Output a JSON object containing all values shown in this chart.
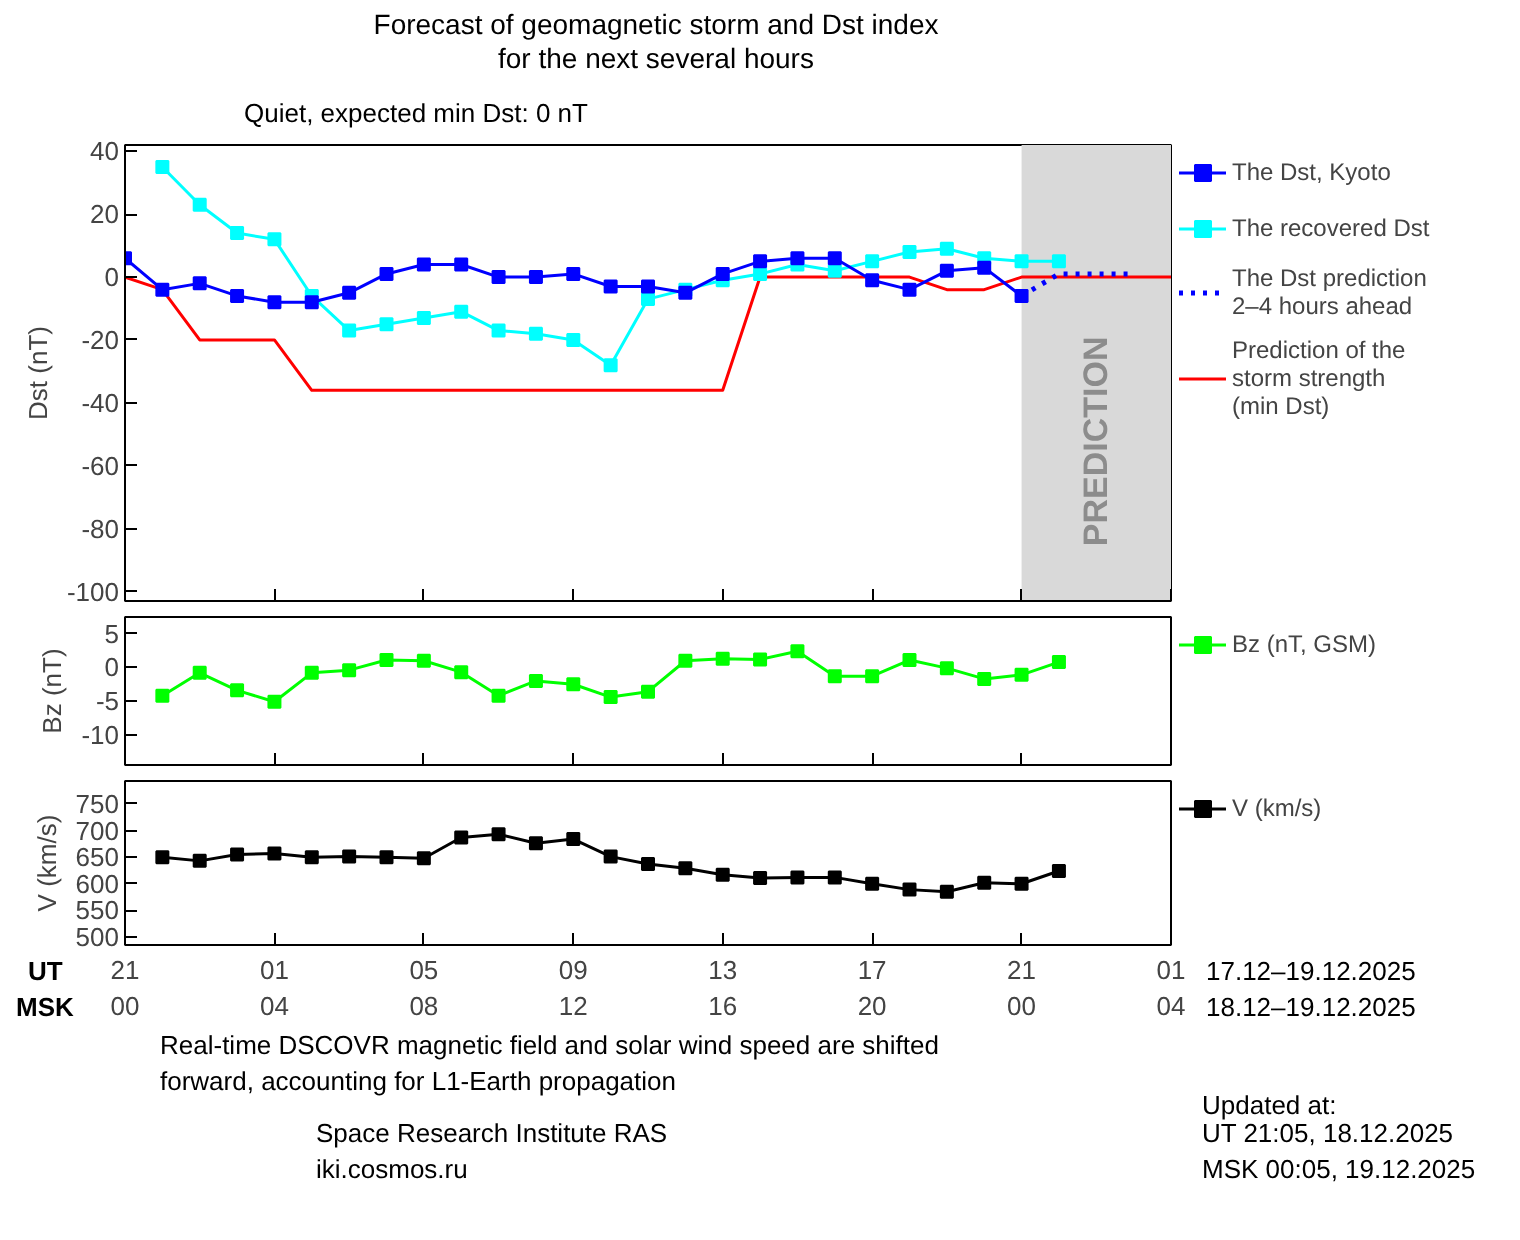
{
  "chart_data": [
    {
      "type": "line",
      "title": "Forecast of geomagnetic storm and Dst index\nfor the next several hours",
      "ylabel": "Dst (nT)",
      "annotations": [
        "Quiet, expected min Dst: 0 nT",
        "PREDICTION"
      ],
      "categories": [
        null,
        null,
        null,
        null,
        null,
        null,
        null,
        null,
        null,
        null,
        null,
        null,
        null,
        null,
        null,
        null,
        null,
        null,
        null,
        null,
        null,
        null,
        null,
        null,
        null,
        null,
        null,
        null,
        null
      ],
      "ylim": [
        -103,
        42
      ],
      "yticks": [
        -100,
        -80,
        -60,
        -40,
        -20,
        0,
        20,
        40
      ],
      "tick_labels": "y",
      "grid": false,
      "legend": "right",
      "series": [
        {
          "name": "The Dst, Kyoto",
          "color": "#0000ff",
          "marker": "square",
          "values": [
            6,
            -4,
            -2,
            -6,
            -8,
            -8,
            -5,
            1,
            4,
            4,
            0,
            0,
            1,
            -3,
            -3,
            -5,
            1,
            5,
            6,
            6,
            -1,
            -4,
            2,
            3,
            -6,
            null,
            null,
            null,
            null
          ]
        },
        {
          "name": "The recovered Dst",
          "color": "#00ffff",
          "marker": "square",
          "values": [
            null,
            35,
            23,
            14,
            12,
            -6,
            -17,
            -15,
            -13,
            -11,
            -17,
            -18,
            -20,
            -28,
            -7,
            -4,
            -1,
            1,
            4,
            2,
            5,
            8,
            9,
            6,
            5,
            5,
            null,
            null,
            null
          ]
        },
        {
          "name": "The Dst prediction\n2–4 hours ahead",
          "color": "#0000ff",
          "marker": "none",
          "line_style": "dotted",
          "values": [
            null,
            null,
            null,
            null,
            null,
            null,
            null,
            null,
            null,
            null,
            null,
            null,
            null,
            null,
            null,
            null,
            null,
            null,
            null,
            null,
            null,
            null,
            null,
            null,
            -6,
            1,
            1,
            1,
            null
          ]
        },
        {
          "name": "Prediction of the\nstorm strength\n(min Dst)",
          "color": "#ff0000",
          "marker": "none",
          "values": [
            0,
            -4,
            -20,
            -20,
            -20,
            -36,
            -36,
            -36,
            -36,
            -36,
            -36,
            -36,
            -36,
            -36,
            -36,
            -36,
            -36,
            0,
            0,
            0,
            0,
            0,
            -4,
            -4,
            0,
            0,
            0,
            0,
            0
          ]
        }
      ]
    },
    {
      "type": "line",
      "ylabel": "Bz (nT)",
      "categories": [
        null,
        null,
        null,
        null,
        null,
        null,
        null,
        null,
        null,
        null,
        null,
        null,
        null,
        null,
        null,
        null,
        null,
        null,
        null,
        null,
        null,
        null,
        null,
        null,
        null,
        null,
        null,
        null,
        null
      ],
      "ylim": [
        -14.5,
        7.5
      ],
      "yticks": [
        -10,
        -5,
        0,
        5
      ],
      "tick_labels": "y",
      "grid": false,
      "legend": "right",
      "series": [
        {
          "name": "Bz (nT, GSM)",
          "color": "#00ff00",
          "marker": "square",
          "values": [
            null,
            -4.2,
            -0.8,
            -3.4,
            -5.1,
            -0.8,
            -0.4,
            1.1,
            1.0,
            -0.7,
            -4.2,
            -2.0,
            -2.5,
            -4.4,
            -3.6,
            1.0,
            1.3,
            1.2,
            2.4,
            -1.3,
            -1.3,
            1.1,
            -0.1,
            -1.7,
            -1.1,
            0.8,
            null,
            null,
            null
          ]
        }
      ]
    },
    {
      "type": "line",
      "ylabel": "V (km/s)",
      "categories": [
        "21\n00",
        null,
        null,
        null,
        "01\n04",
        null,
        null,
        null,
        "05\n08",
        null,
        null,
        null,
        "09\n12",
        null,
        null,
        null,
        "13\n16",
        null,
        null,
        null,
        "17\n20",
        null,
        null,
        null,
        "21\n00",
        null,
        null,
        null,
        "01\n04"
      ],
      "ylim": [
        485,
        793
      ],
      "yticks": [
        500,
        550,
        600,
        650,
        700,
        750
      ],
      "grid": false,
      "legend": "right",
      "annotations": [
        "UT",
        "MSK",
        "17.12–19.12.2025",
        "18.12–19.12.2025",
        "Real-time DSCOVR magnetic field and solar wind speed are shifted",
        "forward, accounting for L1-Earth propagation",
        "Space Research Institute RAS",
        "iki.cosmos.ru",
        "Updated at:",
        "UT   21:05, 18.12.2025",
        "MSK 00:05, 19.12.2025"
      ],
      "series": [
        {
          "name": "V (km/s)",
          "color": "#000000",
          "marker": "square",
          "values": [
            null,
            650,
            643,
            655,
            657,
            650,
            651,
            650,
            648,
            687,
            693,
            676,
            684,
            651,
            637,
            629,
            617,
            611,
            612,
            612,
            600,
            589,
            585,
            602,
            600,
            624,
            null,
            null,
            null
          ]
        }
      ]
    }
  ]
}
